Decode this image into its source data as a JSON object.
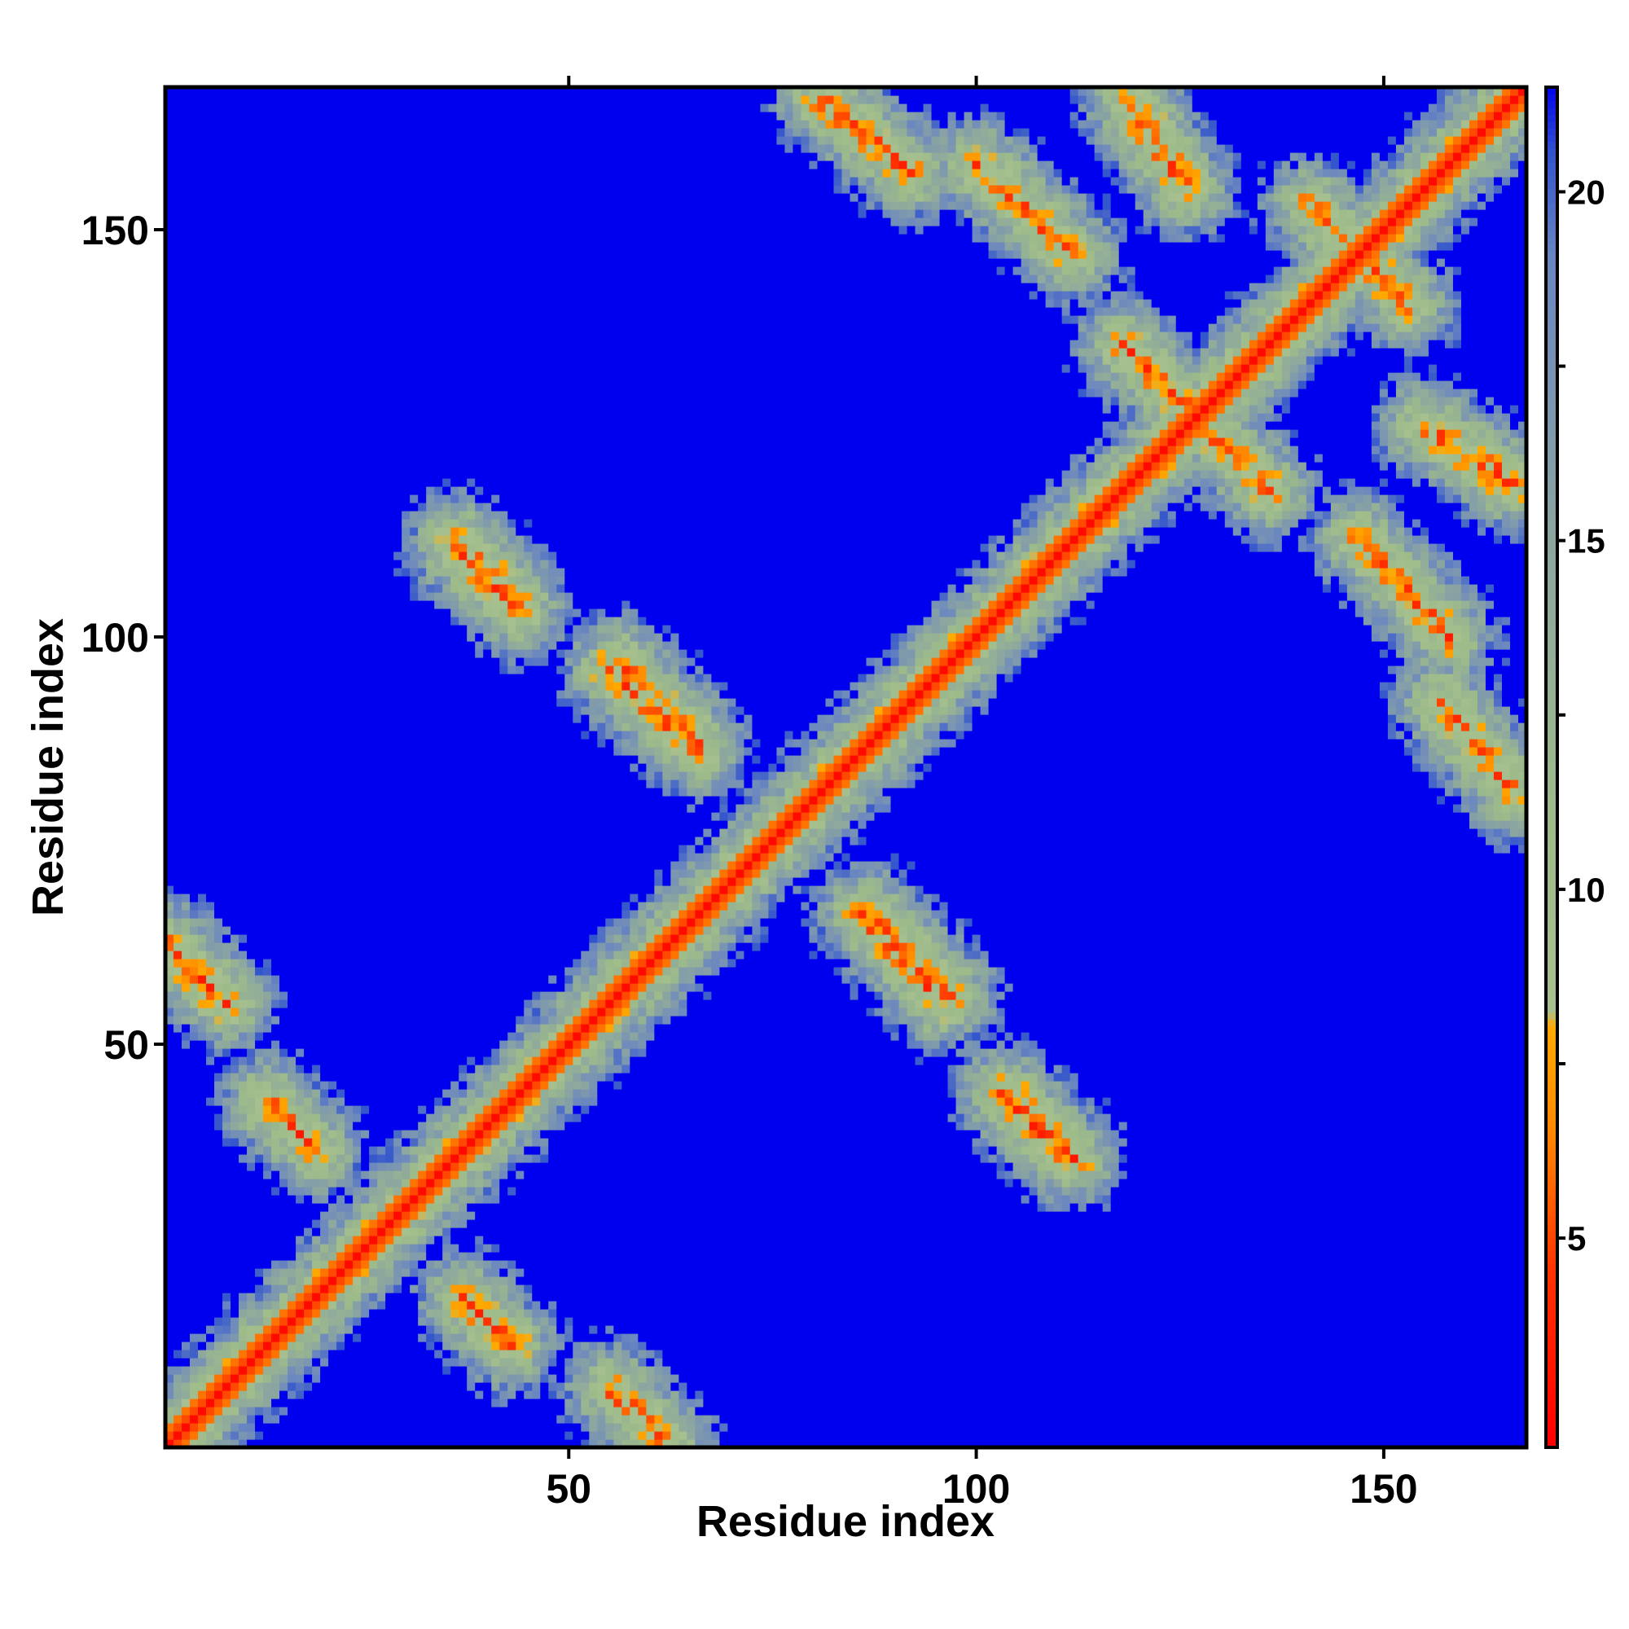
{
  "chart_data": {
    "type": "heatmap",
    "title": "",
    "xlabel": "Residue index",
    "ylabel": "Residue index",
    "n_residues": 167,
    "xlim": [
      1,
      167
    ],
    "ylim": [
      1,
      167
    ],
    "x_ticks": [
      50,
      100,
      150
    ],
    "y_ticks": [
      50,
      100,
      150
    ],
    "x_tick_labels": [
      "50",
      "100",
      "150"
    ],
    "y_tick_labels": [
      "50",
      "100",
      "150"
    ],
    "value_description": "pairwise residue distance map",
    "colorbar": {
      "range": [
        2,
        21.5
      ],
      "ticks": [
        5,
        10,
        15,
        20
      ],
      "tick_labels": [
        "5",
        "10",
        "15",
        "20"
      ],
      "stops": [
        {
          "value": 2.0,
          "color": "#ff0000"
        },
        {
          "value": 4.5,
          "color": "#ff3300"
        },
        {
          "value": 6.5,
          "color": "#ff8800"
        },
        {
          "value": 8.0,
          "color": "#ffaa00"
        },
        {
          "value": 8.2,
          "color": "#a8c090"
        },
        {
          "value": 11.0,
          "color": "#9dbb8a"
        },
        {
          "value": 15.0,
          "color": "#8ca6a0"
        },
        {
          "value": 19.0,
          "color": "#6a86c0"
        },
        {
          "value": 20.5,
          "color": "#3355cc"
        },
        {
          "value": 21.5,
          "color": "#0000ee"
        }
      ]
    },
    "background_color": "#0000ee",
    "diagonal_color": "#ff0000",
    "contact_bands": [
      {
        "axis": "main",
        "from": [
          1,
          1
        ],
        "to": [
          167,
          167
        ],
        "kind": "diagonal"
      },
      {
        "axis": "anti",
        "from": [
          36,
          112
        ],
        "to": [
          44,
          104
        ],
        "kind": "antiparallel"
      },
      {
        "axis": "anti",
        "from": [
          56,
          97
        ],
        "to": [
          66,
          87
        ],
        "kind": "antiparallel"
      },
      {
        "axis": "anti",
        "from": [
          86,
          66
        ],
        "to": [
          96,
          55
        ],
        "kind": "antiparallel"
      },
      {
        "axis": "anti",
        "from": [
          103,
          44
        ],
        "to": [
          111,
          36
        ],
        "kind": "antiparallel"
      },
      {
        "axis": "anti",
        "from": [
          1,
          62
        ],
        "to": [
          8,
          55
        ],
        "kind": "antiparallel"
      },
      {
        "axis": "anti",
        "from": [
          13,
          43
        ],
        "to": [
          19,
          37
        ],
        "kind": "antiparallel"
      },
      {
        "axis": "anti",
        "from": [
          37,
          19
        ],
        "to": [
          43,
          13
        ],
        "kind": "antiparallel"
      },
      {
        "axis": "anti",
        "from": [
          55,
          8
        ],
        "to": [
          62,
          1
        ],
        "kind": "antiparallel"
      },
      {
        "axis": "anti",
        "from": [
          81,
          166
        ],
        "to": [
          92,
          157
        ],
        "kind": "antiparallel"
      },
      {
        "axis": "anti",
        "from": [
          100,
          158
        ],
        "to": [
          112,
          147
        ],
        "kind": "antiparallel"
      },
      {
        "axis": "anti",
        "from": [
          119,
          165
        ],
        "to": [
          126,
          155
        ],
        "kind": "antiparallel"
      },
      {
        "axis": "anti",
        "from": [
          141,
          153
        ],
        "to": [
          153,
          141
        ],
        "kind": "antiparallel"
      },
      {
        "axis": "anti",
        "from": [
          155,
          126
        ],
        "to": [
          166,
          119
        ],
        "kind": "antiparallel"
      },
      {
        "axis": "anti",
        "from": [
          157,
          92
        ],
        "to": [
          166,
          81
        ],
        "kind": "antiparallel"
      },
      {
        "axis": "anti",
        "from": [
          147,
          112
        ],
        "to": [
          158,
          100
        ],
        "kind": "antiparallel"
      },
      {
        "axis": "anti",
        "from": [
          126,
          128
        ],
        "to": [
          136,
          118
        ],
        "kind": "antiparallel"
      }
    ]
  }
}
